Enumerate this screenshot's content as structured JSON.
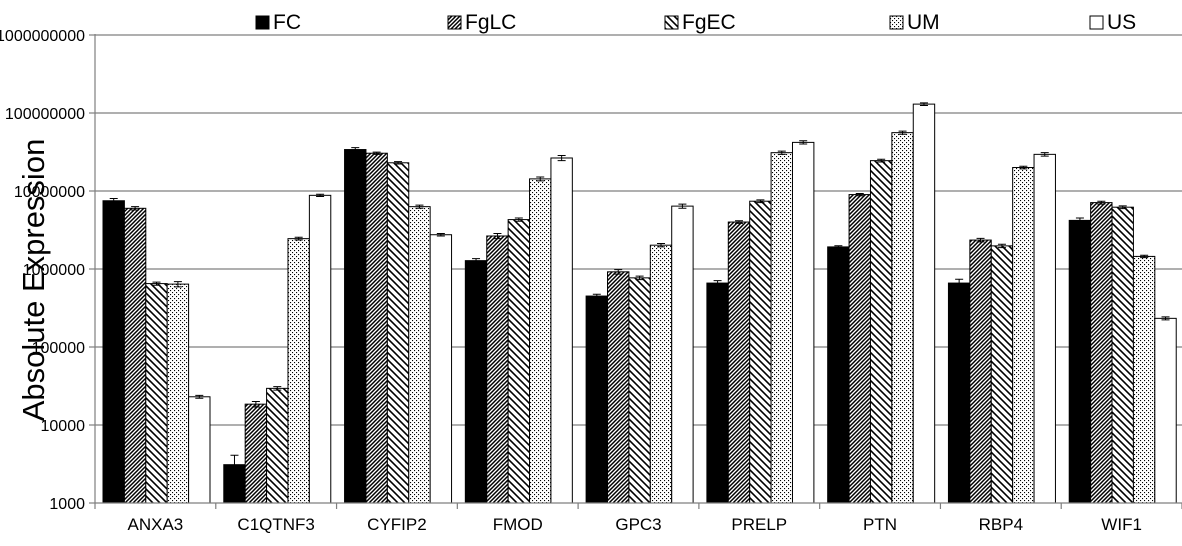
{
  "chart_data": {
    "type": "bar",
    "title": "",
    "xlabel": "",
    "ylabel": "Absolute Expression",
    "yscale": "log",
    "ylim": [
      1000,
      1000000000
    ],
    "yticks": [
      {
        "value": 1000,
        "label": "1000"
      },
      {
        "value": 10000,
        "label": "10000"
      },
      {
        "value": 100000,
        "label": "100000"
      },
      {
        "value": 1000000,
        "label": "1000000"
      },
      {
        "value": 10000000,
        "label": "10000000"
      },
      {
        "value": 100000000,
        "label": "100000000"
      },
      {
        "value": 1000000000,
        "label": "1000000000"
      }
    ],
    "grid": true,
    "legend_position": "top",
    "error_bars": true,
    "categories": [
      "ANXA3",
      "C1QTNF3",
      "CYFIP2",
      "FMOD",
      "GPC3",
      "PRELP",
      "PTN",
      "RBP4",
      "WIF1"
    ],
    "series": [
      {
        "name": "FC",
        "pattern": "solid-black",
        "values": [
          7500000,
          3100,
          34000000,
          1280000,
          450000,
          660000,
          1920000,
          660000,
          4200000
        ],
        "errors": [
          500000,
          1000,
          2000000,
          80000,
          25000,
          50000,
          70000,
          80000,
          300000
        ]
      },
      {
        "name": "FgLC",
        "pattern": "diagonal-down",
        "values": [
          6000000,
          18500,
          30500000,
          2650000,
          920000,
          4000000,
          9000000,
          2350000,
          7100000
        ],
        "errors": [
          300000,
          1500,
          1000000,
          200000,
          60000,
          150000,
          300000,
          120000,
          300000
        ]
      },
      {
        "name": "FgEC",
        "pattern": "diagonal-wide",
        "values": [
          650000,
          29500,
          23000000,
          4300000,
          770000,
          7400000,
          24500000,
          1980000,
          6200000
        ],
        "errors": [
          30000,
          1500,
          800000,
          200000,
          40000,
          300000,
          1000000,
          100000,
          250000
        ]
      },
      {
        "name": "UM",
        "pattern": "dots",
        "values": [
          640000,
          2450000,
          6300000,
          14300000,
          2020000,
          31000000,
          56000000,
          20000000,
          1450000
        ],
        "errors": [
          50000,
          100000,
          300000,
          800000,
          100000,
          1500000,
          2500000,
          800000,
          50000
        ]
      },
      {
        "name": "US",
        "pattern": "white",
        "values": [
          23000,
          8800000,
          2750000,
          26500000,
          6400000,
          42000000,
          130000000,
          29500000,
          233000
        ],
        "errors": [
          1000,
          300000,
          100000,
          2000000,
          400000,
          2000000,
          5000000,
          1500000,
          10000
        ]
      }
    ],
    "colors": {
      "fill_dark": "#000000",
      "fill_light": "#ffffff",
      "gridline": "#7f7f7f",
      "axis": "#7f7f7f"
    }
  }
}
